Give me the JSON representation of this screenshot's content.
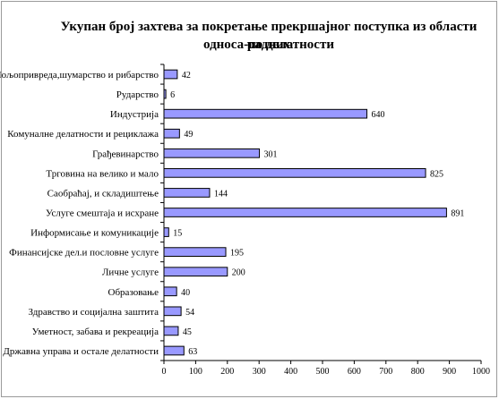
{
  "chart_data": {
    "type": "bar",
    "orientation": "horizontal",
    "title_line1": "Укупан број захтева за покретање прекршајног поступка из области радних",
    "title_line2": "односа-по делатности",
    "categories": [
      "Пољопривреда,шумарство  и рибарство",
      "Рударство",
      "Индустрија",
      "Комуналне делатности и рециклажа",
      "Грађевинарство",
      "Трговина на велико и мало",
      "Саобраћај, и складиштење",
      "Услуге смештаја и исхране",
      "Информисање и комуникације",
      "Финансијске дел.и пословне услуге",
      "Личне услуге",
      "Образовање",
      "Здравство и социјална заштита",
      "Уметност, забава и рекреација",
      "Државна управа и остале делатности"
    ],
    "values": [
      42,
      6,
      640,
      49,
      301,
      825,
      144,
      891,
      15,
      195,
      200,
      40,
      54,
      45,
      63
    ],
    "xlim": [
      0,
      1000
    ],
    "xticks": [
      0,
      100,
      200,
      300,
      400,
      500,
      600,
      700,
      800,
      900,
      1000
    ],
    "bar_color": "#9999ff",
    "bar_edge_color": "#000000",
    "grid": false,
    "legend": "none"
  }
}
